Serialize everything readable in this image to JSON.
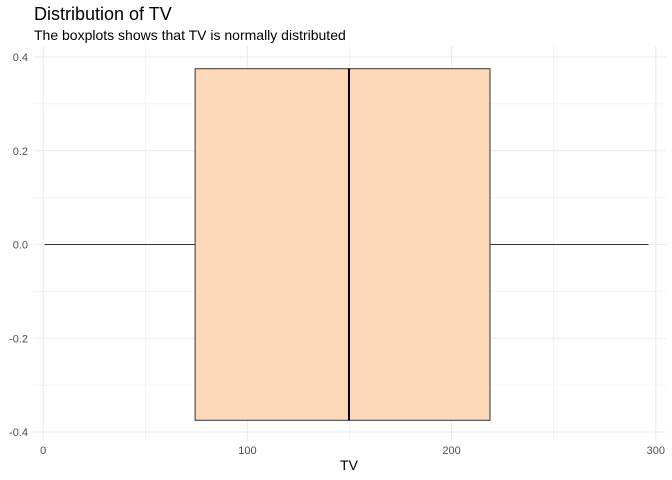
{
  "chart_data": {
    "type": "boxplot",
    "title": "Distribution of TV",
    "subtitle": "The boxplots shows that TV is normally distributed",
    "xlabel": "TV",
    "ylabel": "",
    "xlim": [
      -4.5,
      305
    ],
    "ylim": [
      -0.4,
      0.4
    ],
    "x_ticks": [
      0,
      100,
      200,
      300
    ],
    "x_tick_labels": [
      "0",
      "100",
      "200",
      "300"
    ],
    "y_ticks": [
      0.4,
      0.2,
      0.0,
      -0.2,
      -0.4
    ],
    "y_tick_labels": [
      "0.4",
      "0.2",
      "0.0",
      "-0.2",
      "-0.4"
    ],
    "box": {
      "variable": "TV",
      "min": 0.7,
      "q1": 74.4,
      "median": 149.75,
      "q3": 218.8,
      "max": 296.4,
      "y_center": 0,
      "y_halfwidth": 0.375
    },
    "grid": true,
    "colors": {
      "box_fill": "#fdd9b9",
      "box_stroke": "#333333",
      "median_line": "#000000",
      "grid": "#ebebeb",
      "background": "#ffffff"
    }
  }
}
